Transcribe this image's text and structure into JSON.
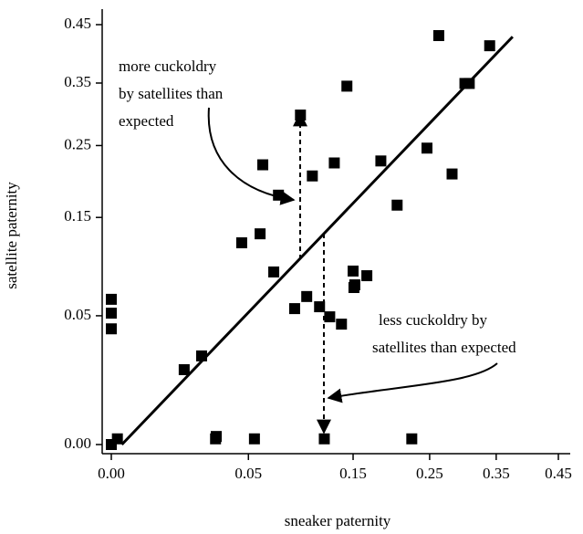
{
  "chart_data": {
    "type": "scatter",
    "xlabel": "sneaker paternity",
    "ylabel": "satellite paternity",
    "xscale": "arcsine-sqrt",
    "yscale": "arcsine-sqrt",
    "xlim": [
      0,
      0.45
    ],
    "ylim": [
      0,
      0.45
    ],
    "xticks": [
      {
        "value": 0,
        "label": "0.00"
      },
      0.05,
      0.15,
      0.25,
      0.35,
      0.45
    ],
    "yticks": [
      {
        "value": 0,
        "label": "0.00"
      },
      0.05,
      0.15,
      0.25,
      0.35,
      0.45
    ],
    "color": "#000000",
    "x": [
      0.0,
      0.0001,
      0.0,
      0.0,
      0.0,
      0.0143,
      0.0219,
      0.0291,
      0.0295,
      0.0544,
      0.0453,
      0.0587,
      0.0697,
      0.0608,
      0.0737,
      0.0882,
      0.0998,
      0.1128,
      0.1236,
      0.0937,
      0.1054,
      0.1286,
      0.1366,
      0.1428,
      0.15,
      0.152,
      0.151,
      0.1665,
      0.1178,
      0.184,
      0.2052,
      0.2462,
      0.2631,
      0.2826,
      0.3018,
      0.3084,
      0.3398,
      0.225
    ],
    "y": [
      0.0,
      0.0001,
      0.0633,
      0.052,
      0.0405,
      0.0171,
      0.0239,
      0.0001,
      0.0002,
      0.0001,
      0.1197,
      0.1301,
      0.0886,
      0.2214,
      0.1789,
      0.0556,
      0.0657,
      0.0571,
      0.0492,
      0.2976,
      0.2054,
      0.2241,
      0.0438,
      0.3448,
      0.0895,
      0.0762,
      0.0737,
      0.0849,
      0.0001,
      0.227,
      0.1657,
      0.2461,
      0.431,
      0.2082,
      0.3493,
      0.3493,
      0.4134,
      0.0001
    ],
    "trend_line": {
      "x": [
        0.0003,
        0.376
      ],
      "y": [
        0,
        0.429
      ]
    },
    "annotations": [
      "more cuckoldry",
      "by satellites than",
      "expected",
      "less cuckoldry by",
      "satellites than expected"
    ]
  }
}
